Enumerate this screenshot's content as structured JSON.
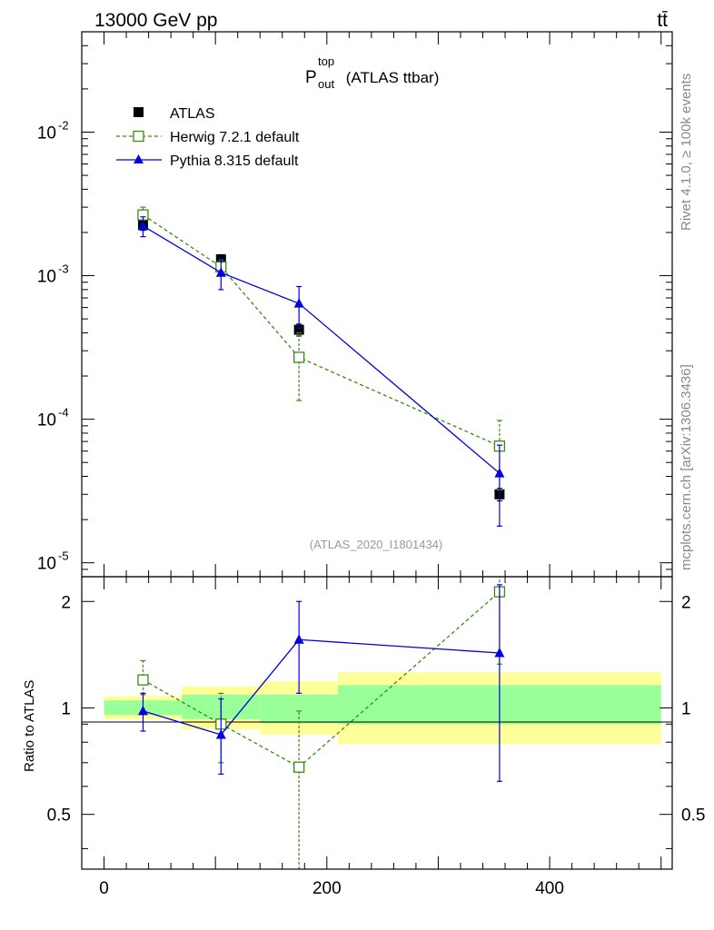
{
  "header": {
    "energy_label": "13000 GeV pp",
    "process_label": "tt̄"
  },
  "side_labels": {
    "rivet": "Rivet 4.1.0, ≥ 100k events",
    "source": "mcplots.cern.ch [arXiv:1306.3436]"
  },
  "chart_data": [
    {
      "type": "line",
      "title_main": "P",
      "title_sup": "top",
      "title_sub": "out",
      "title_rest": " (ATLAS ttbar)",
      "analysis_label": "(ATLAS_2020_I1801434)",
      "yscale": "log",
      "ylim": [
        8e-06,
        0.05
      ],
      "xlim": [
        -20,
        510
      ],
      "y_tick_labels": [
        {
          "base": "10",
          "exp": "-2",
          "value": 0.01
        },
        {
          "base": "10",
          "exp": "-3",
          "value": 0.001
        },
        {
          "base": "10",
          "exp": "-4",
          "value": 0.0001
        },
        {
          "base": "10",
          "exp": "-5",
          "value": 1e-05
        }
      ],
      "legend": [
        {
          "label": "ATLAS",
          "color": "#000000",
          "marker": "filled-square"
        },
        {
          "label": "Herwig 7.2.1 default",
          "color": "#3a8a0e",
          "marker": "open-square"
        },
        {
          "label": "Pythia 8.315 default",
          "color": "#0000dd",
          "marker": "filled-triangle"
        }
      ],
      "series": [
        {
          "name": "ATLAS",
          "x": [
            35,
            105,
            175,
            355
          ],
          "y": [
            0.00225,
            0.0013,
            0.00042,
            3e-05
          ],
          "err_lo": [
            0.00018,
            0.0001,
            4e-05,
            3e-06
          ],
          "err_hi": [
            0.00018,
            0.0001,
            4e-05,
            3e-06
          ]
        },
        {
          "name": "Herwig 7.2.1 default",
          "x": [
            35,
            105,
            175,
            355
          ],
          "y": [
            0.00265,
            0.00115,
            0.00027,
            6.5e-05
          ],
          "err_lo": [
            0.0002,
            0.00012,
            0.000135,
            3.3e-05
          ],
          "err_hi": [
            0.00035,
            0.00013,
            0.00013,
            3.3e-05
          ]
        },
        {
          "name": "Pythia 8.315 default",
          "x": [
            35,
            105,
            175,
            355
          ],
          "y": [
            0.00222,
            0.00105,
            0.00064,
            4.2e-05
          ],
          "err_lo": [
            0.00035,
            0.00025,
            0.00021,
            2.4e-05
          ],
          "err_hi": [
            0.00035,
            0.00025,
            0.0002,
            2.4e-05
          ]
        }
      ]
    },
    {
      "type": "line",
      "ylabel": "Ratio to ATLAS",
      "yscale": "log",
      "ylim": [
        0.35,
        2.35
      ],
      "xlim": [
        -20,
        510
      ],
      "y_ticks": [
        {
          "label": "2",
          "value": 2
        },
        {
          "label": "1",
          "value": 1
        },
        {
          "label": "0.5",
          "value": 0.5
        }
      ],
      "x_ticks": [
        {
          "label": "0",
          "value": 0
        },
        {
          "label": "200",
          "value": 200
        },
        {
          "label": "400",
          "value": 400
        }
      ],
      "bands": [
        {
          "x": [
            0,
            70
          ],
          "stat": [
            0.955,
            1.05
          ],
          "total": [
            0.93,
            1.08
          ]
        },
        {
          "x": [
            70,
            140
          ],
          "stat": [
            0.93,
            1.09
          ],
          "total": [
            0.87,
            1.15
          ]
        },
        {
          "x": [
            140,
            210
          ],
          "stat": [
            0.905,
            1.09
          ],
          "total": [
            0.84,
            1.19
          ]
        },
        {
          "x": [
            210,
            500
          ],
          "stat": [
            0.9,
            1.16
          ],
          "total": [
            0.79,
            1.26
          ]
        }
      ],
      "band_colors": {
        "stat": "#99ff99",
        "total": "#ffff99"
      },
      "series": [
        {
          "name": "Herwig 7.2.1 default",
          "x": [
            35,
            105,
            175,
            355
          ],
          "y": [
            1.2,
            0.9,
            0.68,
            2.13
          ],
          "err_lo": [
            0.11,
            0.2,
            0.35,
            0.8
          ],
          "err_hi": [
            0.16,
            0.2,
            0.3,
            0.3
          ]
        },
        {
          "name": "Pythia 8.315 default",
          "x": [
            35,
            105,
            175,
            355
          ],
          "y": [
            0.98,
            0.84,
            1.56,
            1.43
          ],
          "err_lo": [
            0.12,
            0.19,
            0.46,
            0.81
          ],
          "err_hi": [
            0.12,
            0.22,
            0.44,
            0.8
          ]
        }
      ]
    }
  ]
}
